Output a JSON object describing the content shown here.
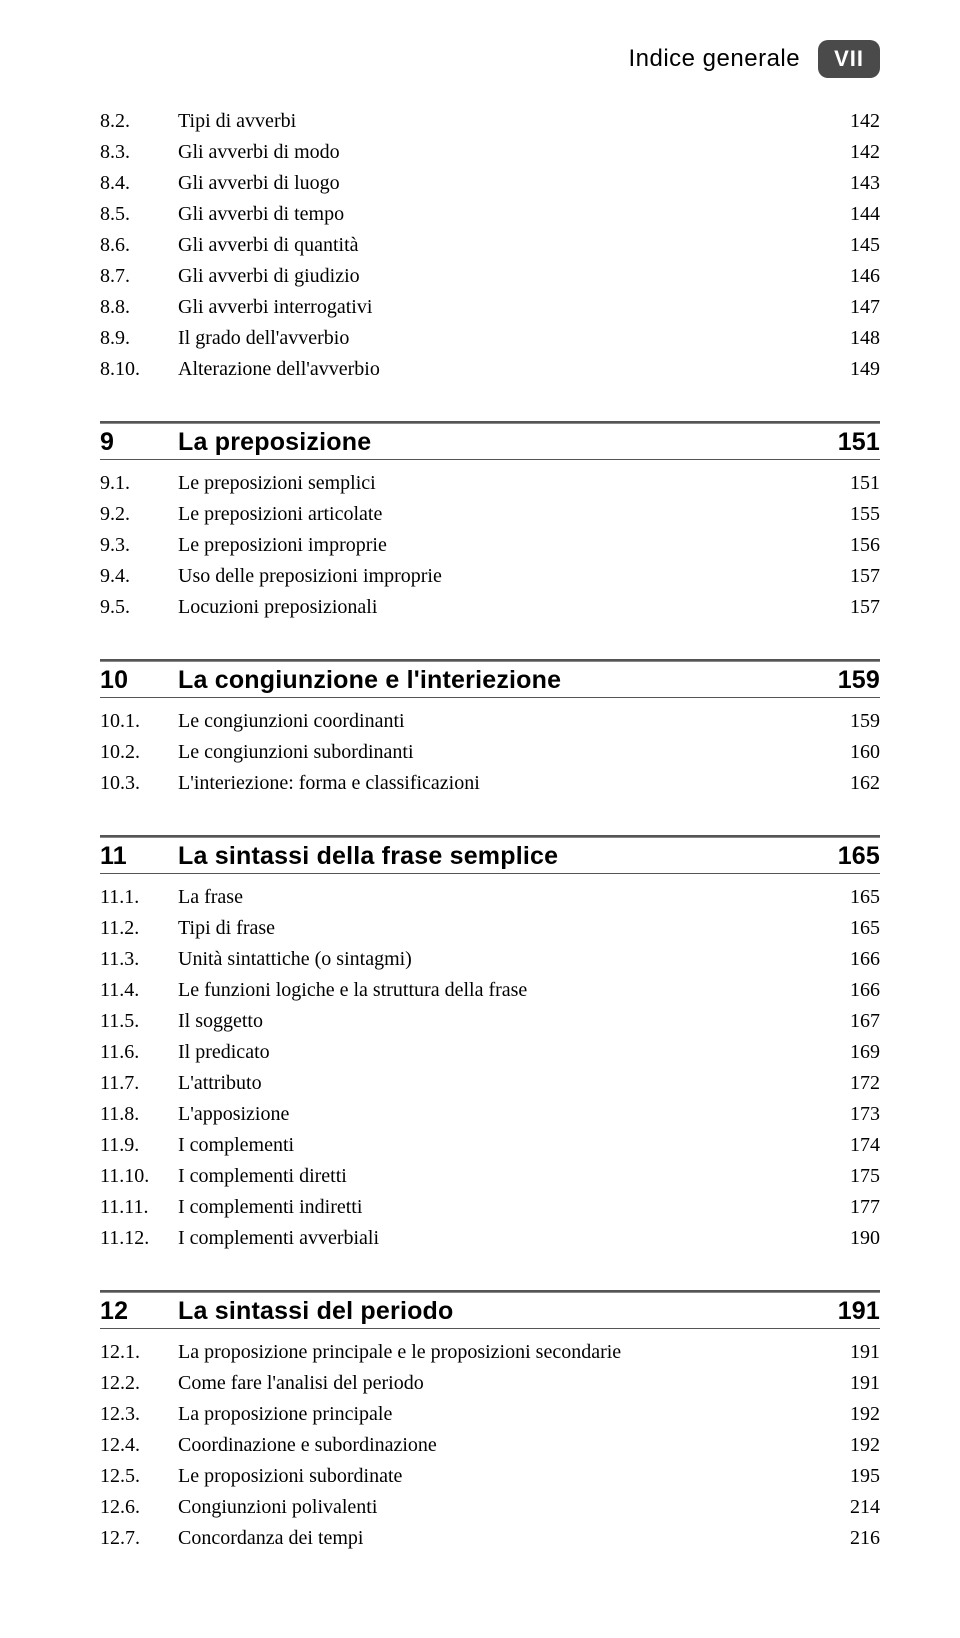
{
  "header": {
    "title": "Indice generale",
    "page_roman": "VII"
  },
  "colors": {
    "badge_bg": "#4a4a4a",
    "badge_fg": "#ffffff",
    "rule": "#555555",
    "text": "#000000",
    "bg": "#ffffff"
  },
  "typography": {
    "body_family": "Times New Roman",
    "heading_family": "Helvetica Neue",
    "body_size_pt": 15,
    "heading_size_pt": 18,
    "header_title_size_pt": 18
  },
  "blocks": [
    {
      "type": "entries",
      "rows": [
        {
          "num": "8.2.",
          "text": "Tipi di avverbi",
          "page": "142"
        },
        {
          "num": "8.3.",
          "text": "Gli avverbi di modo",
          "page": "142"
        },
        {
          "num": "8.4.",
          "text": "Gli avverbi di luogo",
          "page": "143"
        },
        {
          "num": "8.5.",
          "text": "Gli avverbi di tempo",
          "page": "144"
        },
        {
          "num": "8.6.",
          "text": "Gli avverbi di quantità",
          "page": "145"
        },
        {
          "num": "8.7.",
          "text": "Gli avverbi di giudizio",
          "page": "146"
        },
        {
          "num": "8.8.",
          "text": "Gli avverbi interrogativi",
          "page": "147"
        },
        {
          "num": "8.9.",
          "text": "Il grado dell'avverbio",
          "page": "148"
        },
        {
          "num": "8.10.",
          "text": "Alterazione dell'avverbio",
          "page": "149"
        }
      ]
    },
    {
      "type": "chapter",
      "num": "9",
      "title": "La preposizione",
      "page": "151",
      "rows": [
        {
          "num": "9.1.",
          "text": "Le preposizioni semplici",
          "page": "151"
        },
        {
          "num": "9.2.",
          "text": "Le preposizioni articolate",
          "page": "155"
        },
        {
          "num": "9.3.",
          "text": "Le preposizioni improprie",
          "page": "156"
        },
        {
          "num": "9.4.",
          "text": "Uso delle preposizioni improprie",
          "page": "157"
        },
        {
          "num": "9.5.",
          "text": "Locuzioni preposizionali",
          "page": "157"
        }
      ]
    },
    {
      "type": "chapter",
      "num": "10",
      "title": "La congiunzione e l'interiezione",
      "page": "159",
      "rows": [
        {
          "num": "10.1.",
          "text": "Le congiunzioni coordinanti",
          "page": "159"
        },
        {
          "num": "10.2.",
          "text": "Le congiunzioni subordinanti",
          "page": "160"
        },
        {
          "num": "10.3.",
          "text": "L'interiezione: forma e classificazioni",
          "page": "162"
        }
      ]
    },
    {
      "type": "chapter",
      "num": "11",
      "title": "La sintassi della frase semplice",
      "page": "165",
      "rows": [
        {
          "num": "11.1.",
          "text": "La frase",
          "page": "165"
        },
        {
          "num": "11.2.",
          "text": "Tipi di frase",
          "page": "165"
        },
        {
          "num": "11.3.",
          "text": "Unità sintattiche (o sintagmi)",
          "page": "166"
        },
        {
          "num": "11.4.",
          "text": "Le funzioni logiche e la struttura della frase",
          "page": "166"
        },
        {
          "num": "11.5.",
          "text": "Il soggetto",
          "page": "167"
        },
        {
          "num": "11.6.",
          "text": "Il predicato",
          "page": "169"
        },
        {
          "num": "11.7.",
          "text": "L'attributo",
          "page": "172"
        },
        {
          "num": "11.8.",
          "text": "L'apposizione",
          "page": "173"
        },
        {
          "num": "11.9.",
          "text": "I complementi",
          "page": "174"
        },
        {
          "num": "11.10.",
          "text": "I complementi diretti",
          "page": "175"
        },
        {
          "num": "11.11.",
          "text": "I complementi indiretti",
          "page": "177"
        },
        {
          "num": "11.12.",
          "text": "I complementi avverbiali",
          "page": "190"
        }
      ]
    },
    {
      "type": "chapter",
      "num": "12",
      "title": "La sintassi del periodo",
      "page": "191",
      "rows": [
        {
          "num": "12.1.",
          "text": "La proposizione principale e le proposizioni secondarie",
          "page": "191"
        },
        {
          "num": "12.2.",
          "text": "Come fare l'analisi del periodo",
          "page": "191"
        },
        {
          "num": "12.3.",
          "text": "La proposizione principale",
          "page": "192"
        },
        {
          "num": "12.4.",
          "text": "Coordinazione e subordinazione",
          "page": "192"
        },
        {
          "num": "12.5.",
          "text": "Le proposizioni subordinate",
          "page": "195"
        },
        {
          "num": "12.6.",
          "text": "Congiunzioni polivalenti",
          "page": "214"
        },
        {
          "num": "12.7.",
          "text": "Concordanza dei tempi",
          "page": "216"
        }
      ]
    }
  ]
}
